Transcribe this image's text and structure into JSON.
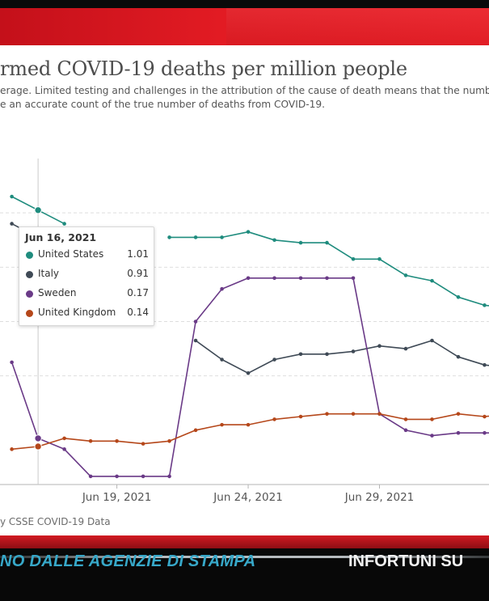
{
  "chart_data": {
    "type": "line",
    "title": "rmed COVID-19 deaths per million people",
    "subtitle_lines": [
      "erage. Limited testing and challenges in the attribution of the cause of death means that the numb",
      "e an accurate count of the true number of deaths from COVID-19."
    ],
    "x_start_day": 15,
    "x_tick_labels": [
      "Jun 19, 2021",
      "Jun 24, 2021",
      "Jun 29, 2021"
    ],
    "x_tick_days": [
      19,
      24,
      29
    ],
    "xlim_days": [
      14.55,
      33.17
    ],
    "ylim": [
      0,
      1.2
    ],
    "gridlines": [
      0.4,
      0.6,
      0.8,
      1.0
    ],
    "series": [
      {
        "name": "United States",
        "color": "#1f8c7e",
        "values": [
          1.06,
          1.01,
          0.96,
          null,
          null,
          null,
          0.91,
          0.91,
          0.91,
          0.93,
          0.9,
          0.89,
          0.89,
          0.83,
          0.83,
          0.77,
          0.75,
          0.69,
          0.66,
          0.65
        ]
      },
      {
        "name": "Italy",
        "color": "#3f4a56",
        "values": [
          0.96,
          0.91,
          null,
          null,
          null,
          null,
          null,
          0.53,
          0.46,
          0.41,
          0.46,
          0.48,
          0.48,
          0.49,
          0.51,
          0.5,
          0.53,
          0.47,
          0.44,
          0.43
        ]
      },
      {
        "name": "Sweden",
        "color": "#6a3a87",
        "values": [
          0.45,
          0.17,
          0.13,
          0.03,
          0.03,
          0.03,
          0.03,
          0.6,
          0.72,
          0.76,
          0.76,
          0.76,
          0.76,
          0.76,
          0.26,
          0.2,
          0.18,
          0.19,
          0.19,
          0.19
        ]
      },
      {
        "name": "United Kingdom",
        "color": "#b5471a",
        "values": [
          0.13,
          0.14,
          0.17,
          0.16,
          0.16,
          0.15,
          0.16,
          0.2,
          0.22,
          0.22,
          0.24,
          0.25,
          0.26,
          0.26,
          0.26,
          0.24,
          0.24,
          0.26,
          0.25,
          0.26
        ]
      }
    ],
    "tooltip": {
      "date": "Jun 16, 2021",
      "day": 16,
      "rows": [
        {
          "name": "United States",
          "value": "1.01",
          "color": "#1f8c7e"
        },
        {
          "name": "Italy",
          "value": "0.91",
          "color": "#3f4a56"
        },
        {
          "name": "Sweden",
          "value": "0.17",
          "color": "#6a3a87"
        },
        {
          "name": "United Kingdom",
          "value": "0.14",
          "color": "#b5471a"
        }
      ]
    },
    "source": "y CSSE COVID-19 Data"
  },
  "ticker": {
    "left_text": "NO DALLE AGENZIE DI STAMPA",
    "right_text": "INFORTUNI SU"
  }
}
